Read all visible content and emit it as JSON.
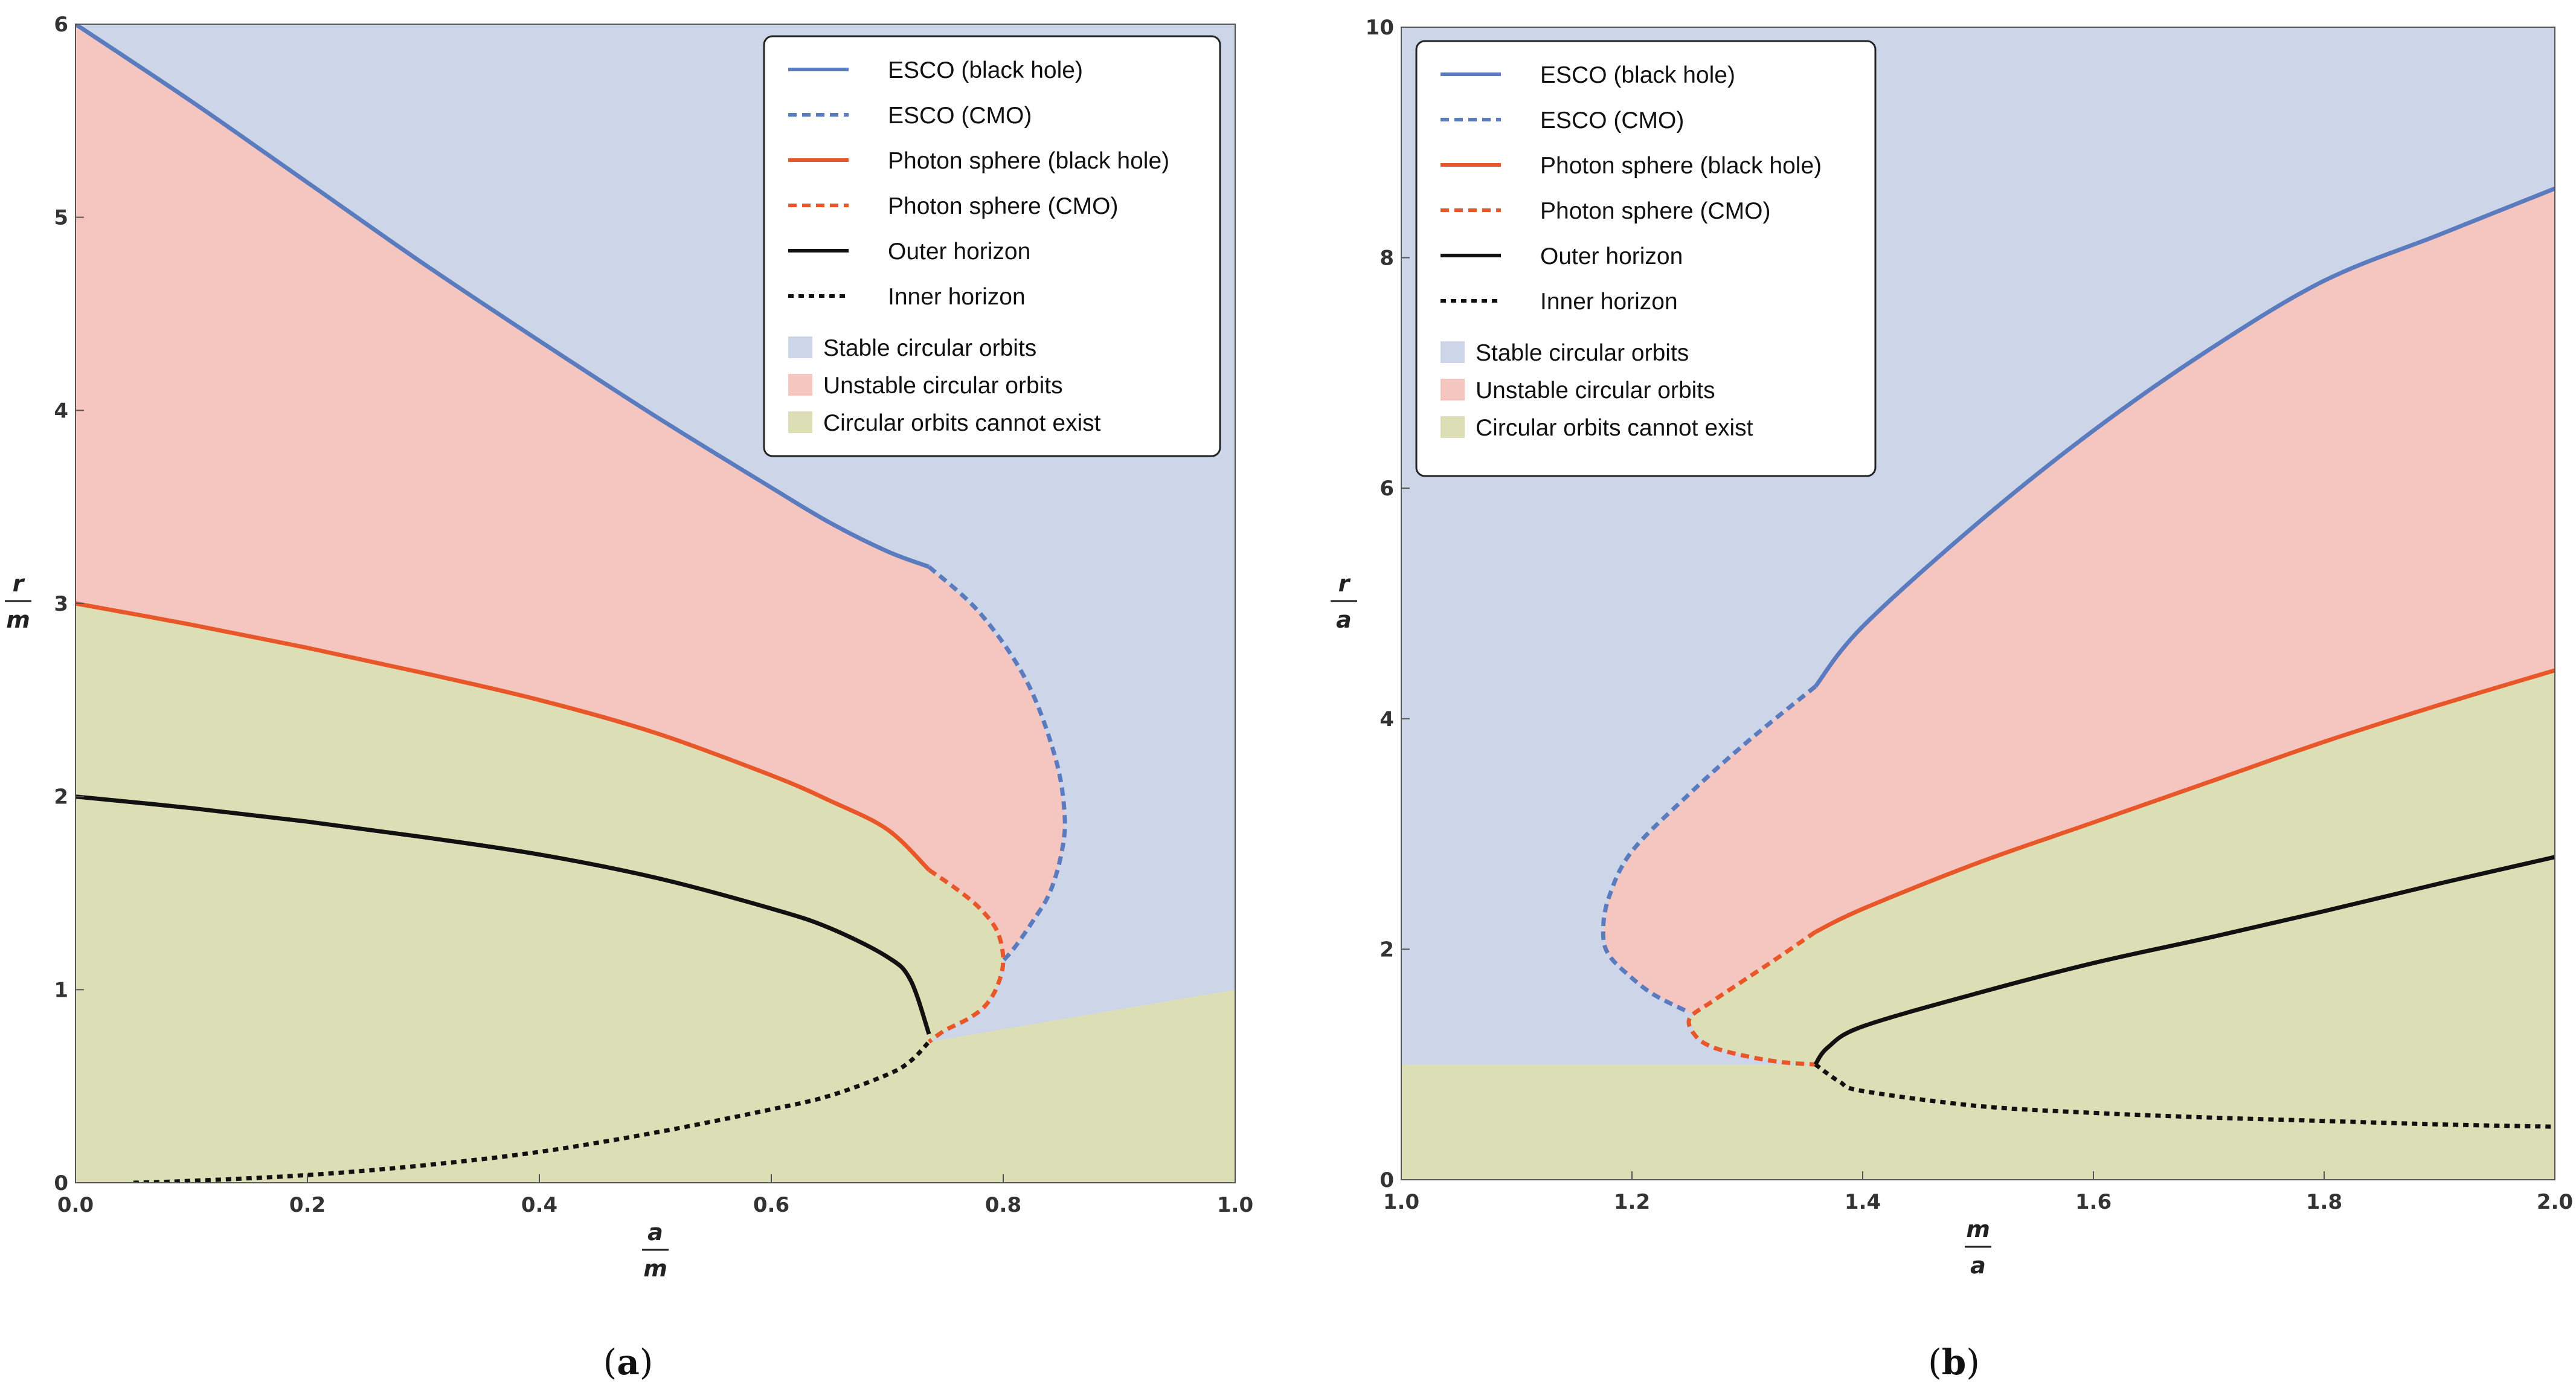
{
  "chart_data": [
    {
      "type": "area",
      "panel": "(a)",
      "caption_open": "(",
      "caption_letter": "a",
      "caption_close": ")",
      "xlabel_num": "a",
      "xlabel_den": "m",
      "ylabel_num": "r",
      "ylabel_den": "m",
      "xlim": [
        0,
        1
      ],
      "ylim": [
        0,
        6
      ],
      "xticks": [
        0.0,
        0.2,
        0.4,
        0.6,
        0.8,
        1.0
      ],
      "xtick_labels": [
        "0.0",
        "0.2",
        "0.4",
        "0.6",
        "0.8",
        "1.0"
      ],
      "yticks": [
        0,
        1,
        2,
        3,
        4,
        5,
        6
      ],
      "ytick_labels": [
        "0",
        "1",
        "2",
        "3",
        "4",
        "5",
        "6"
      ],
      "legend_position": "top-right",
      "series": [
        {
          "name": "ESCO (black hole)",
          "color": "#5b7bbf",
          "style": "solid",
          "x": [
            0,
            0.1,
            0.2,
            0.3,
            0.4,
            0.5,
            0.6,
            0.65,
            0.7,
            0.736
          ],
          "y": [
            6.0,
            5.6,
            5.18,
            4.76,
            4.36,
            3.97,
            3.6,
            3.42,
            3.27,
            3.19
          ]
        },
        {
          "name": "ESCO (CMO)",
          "color": "#5b7bbf",
          "style": "dashed",
          "x": [
            0.736,
            0.78,
            0.82,
            0.845,
            0.853,
            0.85,
            0.84,
            0.825,
            0.81,
            0.8
          ],
          "y": [
            3.19,
            2.95,
            2.6,
            2.2,
            1.9,
            1.7,
            1.5,
            1.35,
            1.22,
            1.15
          ]
        },
        {
          "name": "Photon sphere (black hole)",
          "color": "#e8572a",
          "style": "solid",
          "x": [
            0,
            0.1,
            0.2,
            0.3,
            0.4,
            0.5,
            0.6,
            0.65,
            0.7,
            0.736
          ],
          "y": [
            3.0,
            2.89,
            2.77,
            2.64,
            2.5,
            2.33,
            2.11,
            1.98,
            1.83,
            1.62
          ]
        },
        {
          "name": "Photon sphere (CMO)",
          "color": "#e8572a",
          "style": "dashed",
          "x": [
            0.736,
            0.76,
            0.78,
            0.795,
            0.8,
            0.795,
            0.785,
            0.77,
            0.75,
            0.736
          ],
          "y": [
            1.62,
            1.52,
            1.42,
            1.3,
            1.15,
            1.02,
            0.92,
            0.85,
            0.79,
            0.73
          ]
        },
        {
          "name": "Outer horizon",
          "color": "#111111",
          "style": "solid",
          "x": [
            0,
            0.1,
            0.2,
            0.3,
            0.4,
            0.5,
            0.6,
            0.65,
            0.7,
            0.72,
            0.736
          ],
          "y": [
            2.0,
            1.94,
            1.87,
            1.79,
            1.7,
            1.58,
            1.42,
            1.32,
            1.17,
            1.05,
            0.77
          ]
        },
        {
          "name": "Inner horizon",
          "color": "#111111",
          "style": "dotted",
          "x": [
            0.05,
            0.1,
            0.2,
            0.3,
            0.4,
            0.5,
            0.6,
            0.65,
            0.7,
            0.72,
            0.736
          ],
          "y": [
            0.0,
            0.01,
            0.04,
            0.09,
            0.16,
            0.26,
            0.38,
            0.45,
            0.56,
            0.63,
            0.73
          ]
        }
      ],
      "regions": [
        {
          "name": "Stable circular orbits",
          "color": "#cdd6e8"
        },
        {
          "name": "Unstable circular orbits",
          "color": "#f5c6c0"
        },
        {
          "name": "Circular orbits cannot exist",
          "color": "#dcdfb5"
        }
      ],
      "boundary_line": {
        "x": [
          0.736,
          1.0
        ],
        "y": [
          0.74,
          1.0
        ]
      }
    },
    {
      "type": "area",
      "panel": "(b)",
      "caption_open": "(",
      "caption_letter": "b",
      "caption_close": ")",
      "xlabel_num": "m",
      "xlabel_den": "a",
      "ylabel_num": "r",
      "ylabel_den": "a",
      "xlim": [
        1,
        2
      ],
      "ylim": [
        0,
        10
      ],
      "xticks": [
        1.0,
        1.2,
        1.4,
        1.6,
        1.8,
        2.0
      ],
      "xtick_labels": [
        "1.0",
        "1.2",
        "1.4",
        "1.6",
        "1.8",
        "2.0"
      ],
      "yticks": [
        0,
        2,
        4,
        6,
        8,
        10
      ],
      "ytick_labels": [
        "0",
        "2",
        "4",
        "6",
        "8",
        "10"
      ],
      "legend_position": "top-left",
      "series": [
        {
          "name": "ESCO (black hole)",
          "color": "#5b7bbf",
          "style": "solid",
          "x": [
            1.359,
            1.4,
            1.5,
            1.6,
            1.7,
            1.8,
            1.9,
            2.0
          ],
          "y": [
            4.28,
            4.8,
            5.7,
            6.5,
            7.2,
            7.8,
            8.2,
            8.6
          ]
        },
        {
          "name": "ESCO (CMO)",
          "color": "#5b7bbf",
          "style": "dashed",
          "x": [
            1.359,
            1.3,
            1.25,
            1.2,
            1.18,
            1.175,
            1.18,
            1.2,
            1.22,
            1.25
          ],
          "y": [
            4.28,
            3.8,
            3.35,
            2.85,
            2.45,
            2.15,
            1.95,
            1.75,
            1.6,
            1.45
          ]
        },
        {
          "name": "Photon sphere (black hole)",
          "color": "#e8572a",
          "style": "solid",
          "x": [
            1.359,
            1.4,
            1.5,
            1.6,
            1.7,
            1.8,
            1.9,
            2.0
          ],
          "y": [
            2.15,
            2.35,
            2.75,
            3.1,
            3.45,
            3.8,
            4.12,
            4.42
          ]
        },
        {
          "name": "Photon sphere (CMO)",
          "color": "#e8572a",
          "style": "dashed",
          "x": [
            1.359,
            1.33,
            1.3,
            1.27,
            1.25,
            1.255,
            1.27,
            1.3,
            1.33,
            1.359
          ],
          "y": [
            2.15,
            1.95,
            1.75,
            1.55,
            1.4,
            1.25,
            1.15,
            1.07,
            1.02,
            1.0
          ]
        },
        {
          "name": "Outer horizon",
          "color": "#111111",
          "style": "solid",
          "x": [
            1.359,
            1.37,
            1.4,
            1.5,
            1.6,
            1.7,
            1.8,
            1.9,
            2.0
          ],
          "y": [
            1.0,
            1.15,
            1.33,
            1.62,
            1.88,
            2.1,
            2.33,
            2.57,
            2.8
          ]
        },
        {
          "name": "Inner horizon",
          "color": "#111111",
          "style": "dotted",
          "x": [
            1.359,
            1.38,
            1.4,
            1.5,
            1.6,
            1.7,
            1.8,
            1.9,
            2.0
          ],
          "y": [
            1.0,
            0.85,
            0.77,
            0.64,
            0.58,
            0.54,
            0.51,
            0.48,
            0.46
          ]
        }
      ],
      "regions": [
        {
          "name": "Stable circular orbits",
          "color": "#cdd6e8"
        },
        {
          "name": "Unstable circular orbits",
          "color": "#f5c6c0"
        },
        {
          "name": "Circular orbits cannot exist",
          "color": "#dcdfb5"
        }
      ],
      "boundary_line": {
        "x": [
          1.0,
          1.359
        ],
        "y": [
          1.0,
          1.0
        ]
      }
    }
  ]
}
